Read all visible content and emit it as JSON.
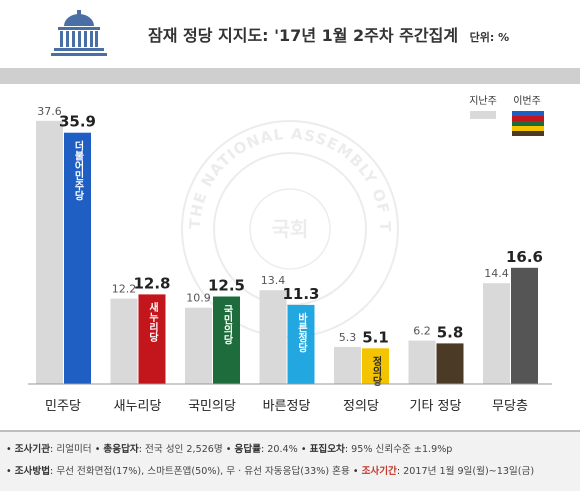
{
  "header": {
    "title": "잠재 정당 지지도: '17년 1월 2주차 주간집계",
    "unit": "단위: %"
  },
  "chart_data": {
    "type": "bar",
    "categories": [
      "민주당",
      "새누리당",
      "국민의당",
      "바른정당",
      "정의당",
      "기타 정당",
      "무당층"
    ],
    "series": [
      {
        "name": "지난주",
        "values": [
          37.6,
          12.2,
          10.9,
          13.4,
          5.3,
          6.2,
          14.4
        ]
      },
      {
        "name": "이번주",
        "values": [
          35.9,
          12.8,
          12.5,
          11.3,
          5.1,
          5.8,
          16.6
        ]
      }
    ],
    "party_logos": [
      "더불어민주당",
      "새누리당",
      "국민의당",
      "바른정당",
      "정의당",
      "",
      ""
    ],
    "colors": {
      "last_week": "#d9d9d9",
      "this_week": [
        "#1f5fc4",
        "#c3161c",
        "#1e6b3c",
        "#22a7e0",
        "#f5c400",
        "#4a3a26",
        "#555555"
      ]
    },
    "legend_swatch_colors": [
      "#1f5fc4",
      "#c3161c",
      "#1e6b3c",
      "#f5c400",
      "#4a3a26"
    ],
    "ylim": [
      0,
      40
    ],
    "legend_position": "top-right",
    "grid": false
  },
  "footer": {
    "line1": [
      {
        "label": "조사기관",
        "value": "리얼미터"
      },
      {
        "label": "총응답자",
        "value": "전국 성인 2,526명"
      },
      {
        "label": "응답률",
        "value": "20.4%"
      },
      {
        "label": "표집오차",
        "value": "95% 신뢰수준 ±1.9%p"
      }
    ],
    "line2": [
      {
        "label": "조사방법",
        "value": "무선 전화면접(17%), 스마트폰앱(50%), 무 · 유선 자동응답(33%) 혼용"
      },
      {
        "label": "조사기간",
        "value": "2017년 1월 9일(월)~13일(금)"
      }
    ]
  },
  "watermark": {
    "ring_text": "THE NATIONAL ASSEMBLY OF THE REPUBLIC OF KOREA",
    "center_text": "국회"
  }
}
